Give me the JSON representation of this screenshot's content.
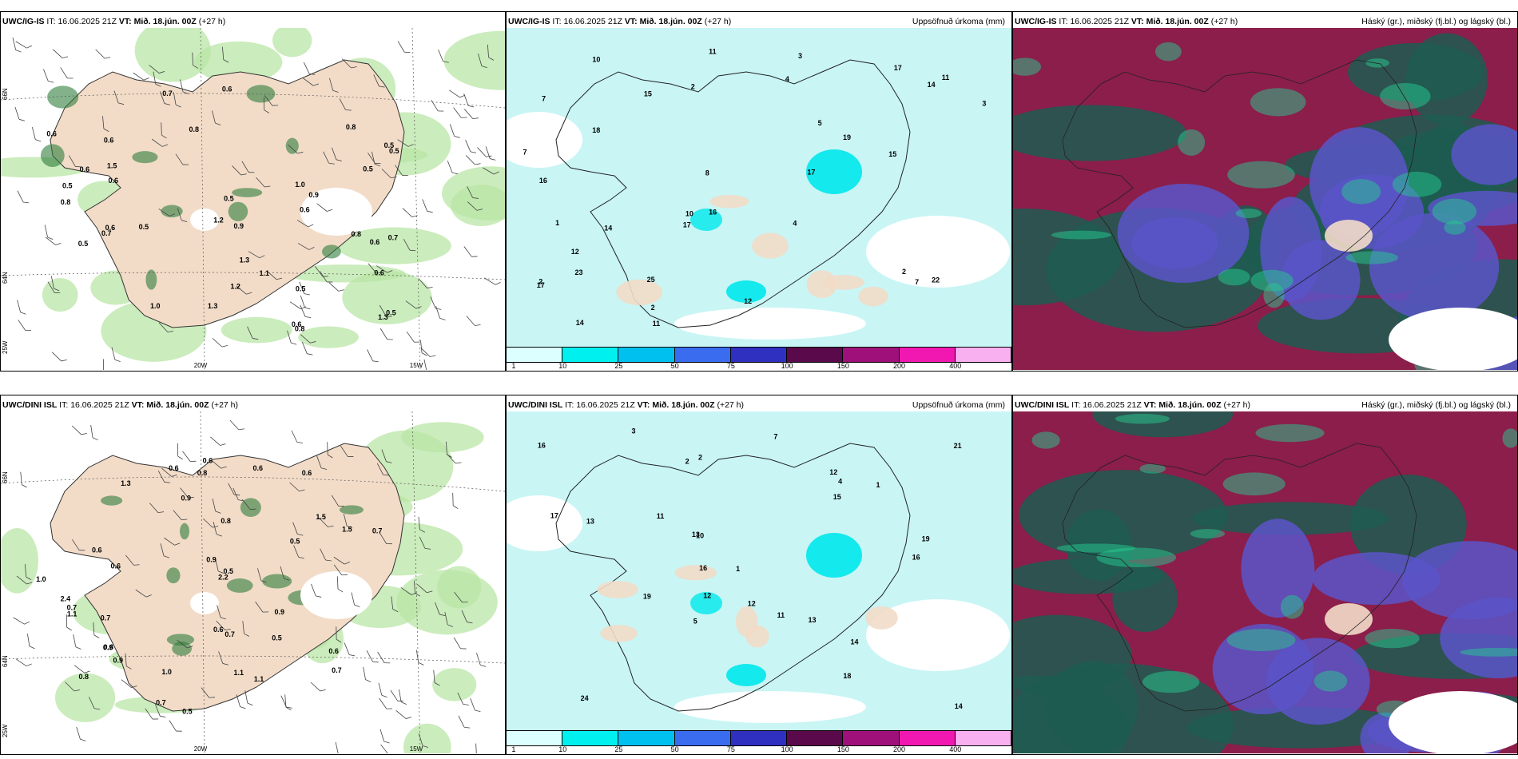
{
  "panels": [
    {
      "model": "UWC/IG-IS",
      "it_label": "IT:",
      "it_value": "16.06.2025 21Z",
      "vt_label": "VT:",
      "vt_value": "Mið. 18.jún. 00Z",
      "lead": "(+27 h)",
      "right_title": "",
      "type": "wind-precip",
      "values": [
        "0.6",
        "0.8",
        "0.8",
        "0.5",
        "0.8",
        "0.6",
        "0.5",
        "0.6",
        "0.9",
        "1.3",
        "0.6",
        "1.0",
        "0.9",
        "0.8",
        "1.2",
        "0.6",
        "0.5",
        "0.7",
        "1.3",
        "0.5",
        "1.2",
        "0.5",
        "0.6",
        "0.5",
        "1.5",
        "0.7",
        "0.8",
        "1.0",
        "1.3",
        "0.7",
        "0.6",
        "0.6",
        "0.5",
        "0.6",
        "0.6",
        "0.5",
        "1.1",
        "0.5"
      ]
    },
    {
      "model": "UWC/IG-IS",
      "it_label": "IT:",
      "it_value": "16.06.2025 21Z",
      "vt_label": "VT:",
      "vt_value": "Mið. 18.jún. 00Z",
      "lead": "(+27 h)",
      "right_title": "Uppsöfnuð úrkoma (mm)",
      "type": "accum",
      "values": [
        "4",
        "3",
        "3",
        "2",
        "2",
        "7",
        "10",
        "8",
        "5",
        "15",
        "11",
        "23",
        "17",
        "25",
        "17",
        "15",
        "19",
        "16",
        "14",
        "22",
        "18",
        "17",
        "14",
        "12",
        "17",
        "11",
        "10",
        "11",
        "16",
        "12",
        "14",
        "7",
        "1",
        "2",
        "2",
        "4",
        "7"
      ]
    },
    {
      "model": "UWC/IG-IS",
      "it_label": "IT:",
      "it_value": "16.06.2025 21Z",
      "vt_label": "VT:",
      "vt_value": "Mið. 18.jún. 00Z",
      "lead": "(+27 h)",
      "right_title": "Háský (gr.), miðský (fj.bl.) og lágský (bl.)",
      "type": "cloud",
      "values": []
    },
    {
      "model": "UWC/DINI ISL",
      "it_label": "IT:",
      "it_value": "16.06.2025 21Z",
      "vt_label": "VT:",
      "vt_value": "Mið. 18.jún. 00Z",
      "lead": "(+27 h)",
      "right_title": "",
      "type": "wind-precip",
      "values": [
        "0.8",
        "0.6",
        "1.3",
        "1.5",
        "0.7",
        "0.6",
        "0.7",
        "0.6",
        "1.5",
        "0.5",
        "2.4",
        "0.6",
        "0.5",
        "2.2",
        "0.5",
        "0.6",
        "0.7",
        "1.0",
        "0.9",
        "0.7",
        "1.1",
        "0.8",
        "0.9",
        "0.5",
        "0.9",
        "1.0",
        "0.7",
        "0.6",
        "0.8",
        "0.9",
        "0.6",
        "0.9",
        "1.1",
        "0.6",
        "0.6",
        "1.1",
        "0.7"
      ]
    },
    {
      "model": "UWC/DINI ISL",
      "it_label": "IT:",
      "it_value": "16.06.2025 21Z",
      "vt_label": "VT:",
      "vt_value": "Mið. 18.jún. 00Z",
      "lead": "(+27 h)",
      "right_title": "Uppsöfnuð úrkoma (mm)",
      "type": "accum",
      "values": [
        "1",
        "1",
        "2",
        "3",
        "10",
        "11",
        "13",
        "12",
        "14",
        "12",
        "16",
        "19",
        "21",
        "17",
        "15",
        "16",
        "16",
        "18",
        "24",
        "13",
        "19",
        "7",
        "12",
        "14",
        "13",
        "11",
        "5",
        "4",
        "2"
      ]
    },
    {
      "model": "UWC/DINI ISL",
      "it_label": "IT:",
      "it_value": "16.06.2025 21Z",
      "vt_label": "VT:",
      "vt_value": "Mið. 18.jún. 00Z",
      "lead": "(+27 h)",
      "right_title": "Háský (gr.), miðský (fj.bl.) og lágský (bl.)",
      "type": "cloud",
      "values": []
    }
  ],
  "colorbar": {
    "labels": [
      "1",
      "10",
      "25",
      "50",
      "75",
      "100",
      "150",
      "200",
      "400"
    ],
    "colors": [
      "#dcffff",
      "#00f0f0",
      "#00c0f0",
      "#3a6cf0",
      "#3030c0",
      "#5a0a4a",
      "#a0107a",
      "#f018b0",
      "#f8b0f0"
    ]
  },
  "axis": {
    "lon_20": "20W",
    "lon_15": "15W",
    "lat_66": "66N",
    "lat_64": "64N",
    "lon_25": "25W"
  },
  "colors": {
    "land": "#f2dcc8",
    "ocean_light": "#c9f5f5",
    "green": "#b9e6a6",
    "green_dark": "#2e7d3c",
    "cloud_red": "#8b1e4a",
    "cloud_green": "#1d5c50",
    "cloud_blue": "#5a55c8"
  }
}
